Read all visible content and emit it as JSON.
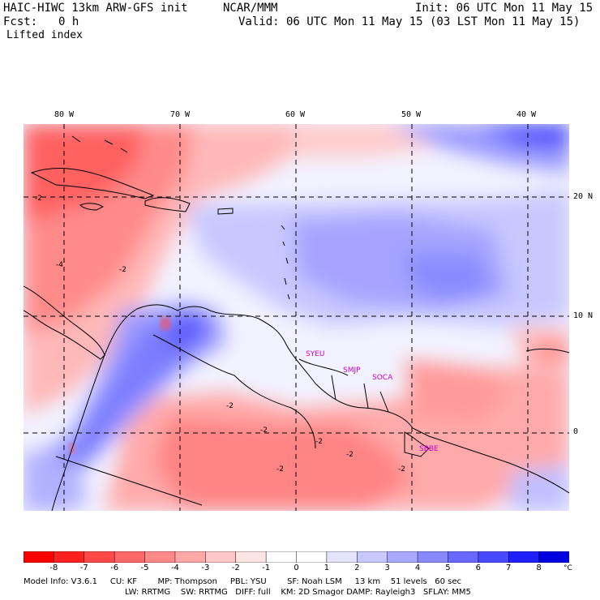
{
  "header": {
    "model": "HAIC-HIWC 13km ARW-GFS init",
    "org": "NCAR/MMM",
    "init": "Init: 06 UTC Mon 11 May 15",
    "fcst_label": "Fcst:",
    "fcst_value": "0 h",
    "valid": "Valid: 06 UTC Mon 11 May 15 (03 LST Mon 11 May 15)",
    "field": "Lifted index"
  },
  "map": {
    "lon_labels": [
      "80 W",
      "70 W",
      "60 W",
      "50 W",
      "40 W"
    ],
    "lat_labels": [
      "20 N",
      "10 N",
      "0"
    ],
    "stations": [
      "SYEU",
      "SMJP",
      "SOCA",
      "SBBE"
    ],
    "contour_labels": [
      "-2",
      "-4",
      "-2",
      "-2",
      "-2",
      "-2",
      "-2",
      "-2",
      "-2"
    ]
  },
  "colorbar": {
    "ticks": [
      "-8",
      "-7",
      "-6",
      "-5",
      "-4",
      "-3",
      "-2",
      "-1",
      "0",
      "1",
      "2",
      "3",
      "4",
      "5",
      "6",
      "7",
      "8"
    ],
    "unit": "°C",
    "colors": [
      "#ff0000",
      "#ff2020",
      "#ff4848",
      "#ff6868",
      "#ff8888",
      "#ffa8a8",
      "#ffc8c8",
      "#ffe4e4",
      "#ffffff",
      "#ffffff",
      "#e4e4ff",
      "#c8c8ff",
      "#a8a8ff",
      "#8888ff",
      "#6868ff",
      "#4848ff",
      "#2020ff",
      "#0000e0"
    ]
  },
  "model_info": {
    "line1": "Model Info: V3.6.1     CU: KF        MP: Thompson     PBL: YSU        SF: Noah LSM     13 km    51 levels   60 sec",
    "line2": "LW: RRTMG    SW: RRTMG   DIFF: full    KM: 2D Smagor DAMP: Rayleigh3   SFLAY: MM5"
  }
}
